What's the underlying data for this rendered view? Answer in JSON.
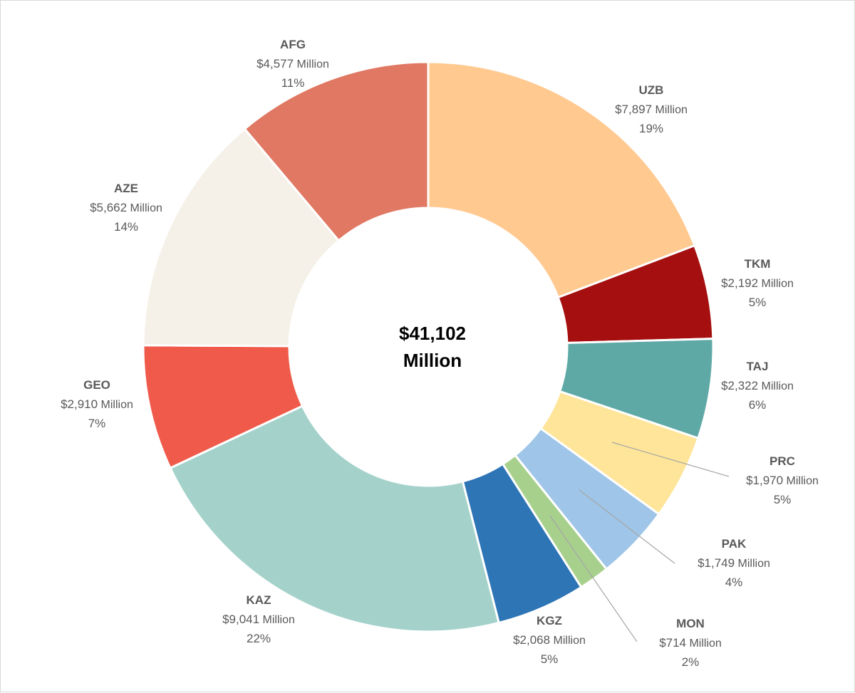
{
  "chart_data": {
    "type": "donut",
    "center_label": [
      "$41,102",
      "Million"
    ],
    "unit": "Million",
    "slices": [
      {
        "code": "UZB",
        "value": 7897,
        "value_label": "$7,897",
        "percent_label": "19%",
        "color": "#ffc990"
      },
      {
        "code": "TKM",
        "value": 2192,
        "value_label": "$2,192",
        "percent_label": "5%",
        "color": "#a50f0f"
      },
      {
        "code": "TAJ",
        "value": 2322,
        "value_label": "$2,322",
        "percent_label": "6%",
        "color": "#5ea9a6"
      },
      {
        "code": "PRC",
        "value": 1970,
        "value_label": "$1,970",
        "percent_label": "5%",
        "color": "#ffe599"
      },
      {
        "code": "PAK",
        "value": 1749,
        "value_label": "$1,749",
        "percent_label": "4%",
        "color": "#9fc5e8"
      },
      {
        "code": "MON",
        "value": 714,
        "value_label": "$714",
        "percent_label": "2%",
        "color": "#a8d08d"
      },
      {
        "code": "KGZ",
        "value": 2068,
        "value_label": "$2,068",
        "percent_label": "5%",
        "color": "#2e75b6"
      },
      {
        "code": "KAZ",
        "value": 9041,
        "value_label": "$9,041",
        "percent_label": "22%",
        "color": "#a4d2cb"
      },
      {
        "code": "GEO",
        "value": 2910,
        "value_label": "$2,910",
        "percent_label": "7%",
        "color": "#f05a4a"
      },
      {
        "code": "AZE",
        "value": 5662,
        "value_label": "$5,662",
        "percent_label": "14%",
        "color": "#f5f1e8"
      },
      {
        "code": "AFG",
        "value": 4577,
        "value_label": "$4,577",
        "percent_label": "11%",
        "color": "#e07863"
      }
    ]
  }
}
